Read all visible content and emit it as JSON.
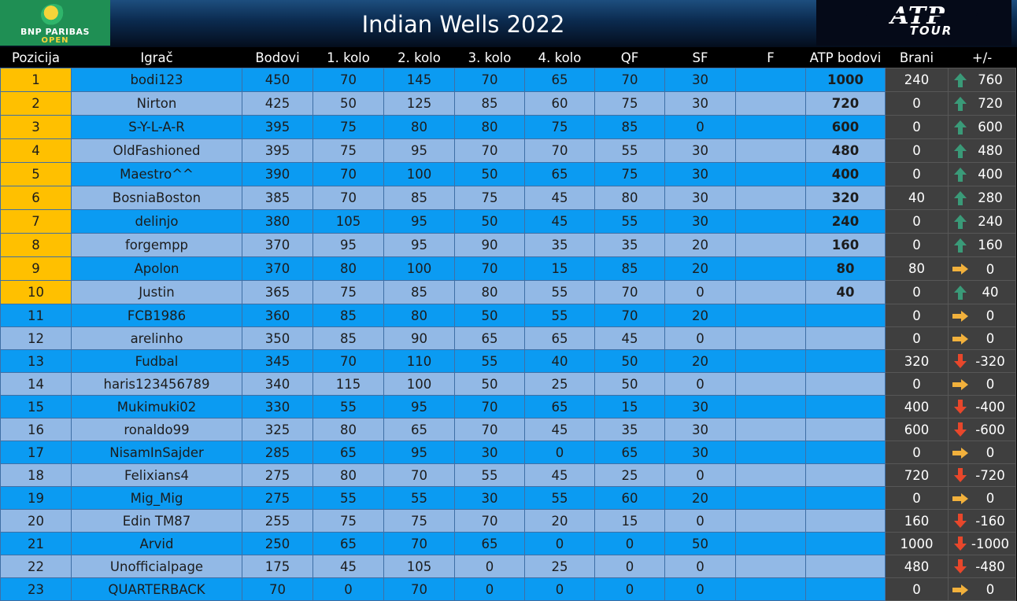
{
  "title": "Indian Wells 2022",
  "logo_left": {
    "line1": "BNP PARIBAS",
    "line2": "OPEN"
  },
  "logo_right": {
    "line1": "ATP",
    "line2": "TOUR"
  },
  "colors": {
    "highlight_position": "#ffc000",
    "row_blue": "#0b9bf2",
    "row_light": "#92b9e6",
    "dark_column": "#3f3f3f",
    "arrow_up": "#3a9a78",
    "arrow_right": "#f2b13c",
    "arrow_down": "#e8472b"
  },
  "icons": {
    "up": "arrow-up-icon",
    "flat": "arrow-right-icon",
    "down": "arrow-down-icon"
  },
  "columns": [
    "Pozicija",
    "Igrač",
    "Bodovi",
    "1. kolo",
    "2. kolo",
    "3. kolo",
    "4. kolo",
    "QF",
    "SF",
    "F",
    "ATP bodovi",
    "Brani",
    "+/-"
  ],
  "rows": [
    {
      "pos": "1",
      "player": "bodi123",
      "bodovi": "450",
      "k1": "70",
      "k2": "145",
      "k3": "70",
      "k4": "65",
      "qf": "70",
      "sf": "30",
      "f": "",
      "atp": "1000",
      "brani": "240",
      "trend": "up",
      "delta": "760"
    },
    {
      "pos": "2",
      "player": "Nirton",
      "bodovi": "425",
      "k1": "50",
      "k2": "125",
      "k3": "85",
      "k4": "60",
      "qf": "75",
      "sf": "30",
      "f": "",
      "atp": "720",
      "brani": "0",
      "trend": "up",
      "delta": "720"
    },
    {
      "pos": "3",
      "player": "S-Y-L-A-R",
      "bodovi": "395",
      "k1": "75",
      "k2": "80",
      "k3": "80",
      "k4": "75",
      "qf": "85",
      "sf": "0",
      "f": "",
      "atp": "600",
      "brani": "0",
      "trend": "up",
      "delta": "600"
    },
    {
      "pos": "4",
      "player": "OldFashioned",
      "bodovi": "395",
      "k1": "75",
      "k2": "95",
      "k3": "70",
      "k4": "70",
      "qf": "55",
      "sf": "30",
      "f": "",
      "atp": "480",
      "brani": "0",
      "trend": "up",
      "delta": "480"
    },
    {
      "pos": "5",
      "player": "Maestro^^",
      "bodovi": "390",
      "k1": "70",
      "k2": "100",
      "k3": "50",
      "k4": "65",
      "qf": "75",
      "sf": "30",
      "f": "",
      "atp": "400",
      "brani": "0",
      "trend": "up",
      "delta": "400"
    },
    {
      "pos": "6",
      "player": "BosniaBoston",
      "bodovi": "385",
      "k1": "70",
      "k2": "85",
      "k3": "75",
      "k4": "45",
      "qf": "80",
      "sf": "30",
      "f": "",
      "atp": "320",
      "brani": "40",
      "trend": "up",
      "delta": "280"
    },
    {
      "pos": "7",
      "player": "delinjo",
      "bodovi": "380",
      "k1": "105",
      "k2": "95",
      "k3": "50",
      "k4": "45",
      "qf": "55",
      "sf": "30",
      "f": "",
      "atp": "240",
      "brani": "0",
      "trend": "up",
      "delta": "240"
    },
    {
      "pos": "8",
      "player": "forgempp",
      "bodovi": "370",
      "k1": "95",
      "k2": "95",
      "k3": "90",
      "k4": "35",
      "qf": "35",
      "sf": "20",
      "f": "",
      "atp": "160",
      "brani": "0",
      "trend": "up",
      "delta": "160"
    },
    {
      "pos": "9",
      "player": "Apolon",
      "bodovi": "370",
      "k1": "80",
      "k2": "100",
      "k3": "70",
      "k4": "15",
      "qf": "85",
      "sf": "20",
      "f": "",
      "atp": "80",
      "brani": "80",
      "trend": "flat",
      "delta": "0"
    },
    {
      "pos": "10",
      "player": "Justin",
      "bodovi": "365",
      "k1": "75",
      "k2": "85",
      "k3": "80",
      "k4": "55",
      "qf": "70",
      "sf": "0",
      "f": "",
      "atp": "40",
      "brani": "0",
      "trend": "up",
      "delta": "40"
    },
    {
      "pos": "11",
      "player": "FCB1986",
      "bodovi": "360",
      "k1": "85",
      "k2": "80",
      "k3": "50",
      "k4": "55",
      "qf": "70",
      "sf": "20",
      "f": "",
      "atp": "",
      "brani": "0",
      "trend": "flat",
      "delta": "0"
    },
    {
      "pos": "12",
      "player": "arelinho",
      "bodovi": "350",
      "k1": "85",
      "k2": "90",
      "k3": "65",
      "k4": "65",
      "qf": "45",
      "sf": "0",
      "f": "",
      "atp": "",
      "brani": "0",
      "trend": "flat",
      "delta": "0"
    },
    {
      "pos": "13",
      "player": "Fudbal",
      "bodovi": "345",
      "k1": "70",
      "k2": "110",
      "k3": "55",
      "k4": "40",
      "qf": "50",
      "sf": "20",
      "f": "",
      "atp": "",
      "brani": "320",
      "trend": "down",
      "delta": "-320"
    },
    {
      "pos": "14",
      "player": "haris123456789",
      "bodovi": "340",
      "k1": "115",
      "k2": "100",
      "k3": "50",
      "k4": "25",
      "qf": "50",
      "sf": "0",
      "f": "",
      "atp": "",
      "brani": "0",
      "trend": "flat",
      "delta": "0"
    },
    {
      "pos": "15",
      "player": "Mukimuki02",
      "bodovi": "330",
      "k1": "55",
      "k2": "95",
      "k3": "70",
      "k4": "65",
      "qf": "15",
      "sf": "30",
      "f": "",
      "atp": "",
      "brani": "400",
      "trend": "down",
      "delta": "-400"
    },
    {
      "pos": "16",
      "player": "ronaldo99",
      "bodovi": "325",
      "k1": "80",
      "k2": "65",
      "k3": "70",
      "k4": "45",
      "qf": "35",
      "sf": "30",
      "f": "",
      "atp": "",
      "brani": "600",
      "trend": "down",
      "delta": "-600"
    },
    {
      "pos": "17",
      "player": "NisamInSajder",
      "bodovi": "285",
      "k1": "65",
      "k2": "95",
      "k3": "30",
      "k4": "0",
      "qf": "65",
      "sf": "30",
      "f": "",
      "atp": "",
      "brani": "0",
      "trend": "flat",
      "delta": "0"
    },
    {
      "pos": "18",
      "player": "Felixians4",
      "bodovi": "275",
      "k1": "80",
      "k2": "70",
      "k3": "55",
      "k4": "45",
      "qf": "25",
      "sf": "0",
      "f": "",
      "atp": "",
      "brani": "720",
      "trend": "down",
      "delta": "-720"
    },
    {
      "pos": "19",
      "player": "Mig_Mig",
      "bodovi": "275",
      "k1": "55",
      "k2": "55",
      "k3": "30",
      "k4": "55",
      "qf": "60",
      "sf": "20",
      "f": "",
      "atp": "",
      "brani": "0",
      "trend": "flat",
      "delta": "0"
    },
    {
      "pos": "20",
      "player": "Edin TM87",
      "bodovi": "255",
      "k1": "75",
      "k2": "75",
      "k3": "70",
      "k4": "20",
      "qf": "15",
      "sf": "0",
      "f": "",
      "atp": "",
      "brani": "160",
      "trend": "down",
      "delta": "-160"
    },
    {
      "pos": "21",
      "player": "Arvid",
      "bodovi": "250",
      "k1": "65",
      "k2": "70",
      "k3": "65",
      "k4": "0",
      "qf": "0",
      "sf": "50",
      "f": "",
      "atp": "",
      "brani": "1000",
      "trend": "down",
      "delta": "-1000"
    },
    {
      "pos": "22",
      "player": "Unofficialpage",
      "bodovi": "175",
      "k1": "45",
      "k2": "105",
      "k3": "0",
      "k4": "25",
      "qf": "0",
      "sf": "0",
      "f": "",
      "atp": "",
      "brani": "480",
      "trend": "down",
      "delta": "-480"
    },
    {
      "pos": "23",
      "player": "QUARTERBACK",
      "bodovi": "70",
      "k1": "0",
      "k2": "70",
      "k3": "0",
      "k4": "0",
      "qf": "0",
      "sf": "0",
      "f": "",
      "atp": "",
      "brani": "0",
      "trend": "flat",
      "delta": "0"
    }
  ]
}
